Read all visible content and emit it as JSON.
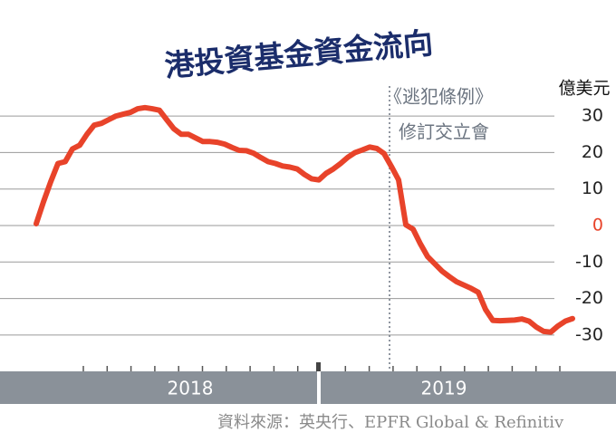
{
  "chart_data": {
    "type": "line",
    "title": "港投資基金資金流向",
    "y_axis_label": "億美元",
    "annotation": [
      "《逃犯條例》",
      "修訂交立會"
    ],
    "source": "資料來源：英央行、EPFR Global & Refinitiv",
    "year_labels": [
      "2018",
      "2019"
    ],
    "color": "#e8432a",
    "ylim": [
      -35,
      35
    ],
    "yticks": [
      30,
      20,
      10,
      0,
      -10,
      -20,
      -30
    ],
    "grid": true,
    "categories": [
      null,
      null,
      null,
      null,
      null,
      null,
      null,
      null,
      null,
      null,
      null,
      null,
      null,
      null,
      null,
      null,
      null,
      null,
      null,
      null,
      null,
      null,
      null,
      null,
      null,
      null,
      null,
      null,
      null,
      null,
      null,
      null,
      null,
      null,
      null,
      null,
      null,
      null,
      null,
      null,
      null,
      null,
      null,
      null,
      null,
      null,
      null,
      null,
      null,
      null,
      null,
      null,
      null,
      null,
      null,
      null,
      null,
      null,
      null,
      null,
      null,
      null,
      null,
      null,
      null,
      null,
      null,
      null,
      null,
      null,
      null,
      null,
      null,
      null,
      null
    ],
    "values": [
      0.5,
      6.5,
      12,
      17,
      17.5,
      21,
      22,
      25,
      27.5,
      28,
      29,
      30,
      30.5,
      31,
      32,
      32.3,
      32,
      31.6,
      29,
      26.5,
      25,
      25,
      24,
      23,
      23,
      22.8,
      22.3,
      21.4,
      20.6,
      20.5,
      19.8,
      18.6,
      17.5,
      17,
      16.3,
      16,
      15.5,
      14,
      12.8,
      12.5,
      14.3,
      15.5,
      17,
      18.7,
      20,
      20.7,
      21.5,
      21.1,
      19.7,
      16.2,
      12.5,
      0.2,
      -1,
      -5,
      -8.5,
      -10.5,
      -12.5,
      -14,
      -15.4,
      -16.3,
      -17.2,
      -18.3,
      -23,
      -26,
      -26.1,
      -26,
      -25.9,
      -25.6,
      -26.2,
      -27.8,
      -29,
      -29.2,
      -27.5,
      -26.2,
      -25.5
    ]
  }
}
